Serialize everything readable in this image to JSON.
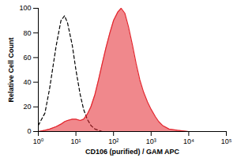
{
  "chart_data": {
    "type": "line",
    "x_label": "CD106 (purified) / GAM APC",
    "y_label": "Relative Cell Count",
    "log": "x",
    "grid": false,
    "x": [
      1,
      1.5,
      2,
      3,
      4,
      5,
      6,
      8,
      10,
      13,
      16,
      20,
      25,
      32,
      40,
      50,
      63,
      80,
      100,
      130,
      160,
      200,
      250,
      320,
      400,
      500,
      630,
      800,
      1000,
      1300,
      1600,
      2000,
      3000,
      5000,
      10000
    ],
    "series": [
      {
        "type": "line",
        "color": "#000000",
        "line_style": "dashed",
        "values": [
          5,
          15,
          35,
          70,
          90,
          94,
          88,
          70,
          50,
          30,
          18,
          10,
          5,
          2,
          1,
          0,
          0,
          0,
          0,
          0,
          0,
          0,
          0,
          0,
          0,
          0,
          0,
          0,
          0,
          0,
          0,
          0,
          0,
          0,
          0
        ]
      },
      {
        "type": "area",
        "color": "#e3262e",
        "values": [
          0,
          1,
          2,
          4,
          6,
          8,
          9,
          10,
          10,
          9,
          10,
          14,
          20,
          30,
          42,
          55,
          68,
          80,
          90,
          97,
          100,
          96,
          85,
          70,
          55,
          42,
          32,
          24,
          18,
          12,
          8,
          5,
          2,
          1,
          0
        ]
      }
    ],
    "xlim": [
      1,
      100000
    ],
    "xticks": [
      {
        "value": 1,
        "label": "10⁰"
      },
      {
        "value": 10,
        "label": "10¹"
      },
      {
        "value": 100,
        "label": "10²"
      },
      {
        "value": 1000,
        "label": "10³"
      },
      {
        "value": 10000,
        "label": "10⁴"
      },
      {
        "value": 100000,
        "label": "10⁵"
      }
    ],
    "ylim": [
      0,
      100
    ],
    "yticks": [
      0,
      20,
      40,
      60,
      80,
      100
    ]
  }
}
